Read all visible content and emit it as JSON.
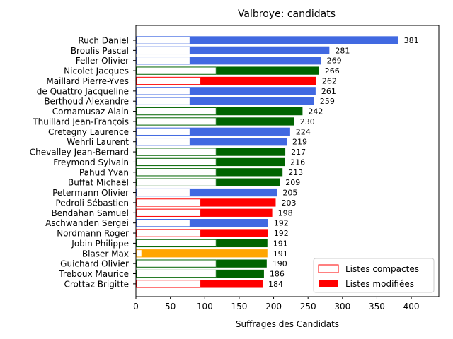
{
  "chart_data": {
    "type": "bar",
    "orientation": "horizontal",
    "title": "Valbroye: candidats",
    "xlabel": "Suffrages des Candidats",
    "ylabel": "",
    "xlim": [
      0,
      440
    ],
    "xticks": [
      "0",
      "50",
      "100",
      "150",
      "200",
      "250",
      "300",
      "350",
      "400"
    ],
    "grid": false,
    "legend_position": "bottom-right",
    "legend": [
      {
        "name": "Listes compactes",
        "style": "outline",
        "color": "#ff0000"
      },
      {
        "name": "Listes modifiées",
        "style": "filled",
        "color": "#ff0000"
      }
    ],
    "party_colors": {
      "blue": "#4169e1",
      "green": "#006400",
      "red": "#ff0000",
      "orange": "#ffa500"
    },
    "candidates": [
      {
        "name": "Ruch Daniel",
        "total": 381,
        "compact": 79,
        "party": "blue"
      },
      {
        "name": "Broulis Pascal",
        "total": 281,
        "compact": 79,
        "party": "blue"
      },
      {
        "name": "Feller Olivier",
        "total": 269,
        "compact": 79,
        "party": "blue"
      },
      {
        "name": "Nicolet Jacques",
        "total": 266,
        "compact": 117,
        "party": "green"
      },
      {
        "name": "Maillard Pierre-Yves",
        "total": 262,
        "compact": 94,
        "party": "red"
      },
      {
        "name": "de Quattro Jacqueline",
        "total": 261,
        "compact": 79,
        "party": "blue"
      },
      {
        "name": "Berthoud Alexandre",
        "total": 259,
        "compact": 79,
        "party": "blue"
      },
      {
        "name": "Cornamusaz Alain",
        "total": 242,
        "compact": 117,
        "party": "green"
      },
      {
        "name": "Thuillard Jean-François",
        "total": 230,
        "compact": 117,
        "party": "green"
      },
      {
        "name": "Cretegny Laurence",
        "total": 224,
        "compact": 79,
        "party": "blue"
      },
      {
        "name": "Wehrli Laurent",
        "total": 219,
        "compact": 79,
        "party": "blue"
      },
      {
        "name": "Chevalley Jean-Bernard",
        "total": 217,
        "compact": 117,
        "party": "green"
      },
      {
        "name": "Freymond Sylvain",
        "total": 216,
        "compact": 117,
        "party": "green"
      },
      {
        "name": "Pahud Yvan",
        "total": 213,
        "compact": 117,
        "party": "green"
      },
      {
        "name": "Buffat Michaël",
        "total": 209,
        "compact": 117,
        "party": "green"
      },
      {
        "name": "Petermann Olivier",
        "total": 205,
        "compact": 79,
        "party": "blue"
      },
      {
        "name": "Pedroli Sébastien",
        "total": 203,
        "compact": 94,
        "party": "red"
      },
      {
        "name": "Bendahan Samuel",
        "total": 198,
        "compact": 94,
        "party": "red"
      },
      {
        "name": "Aschwanden Sergei",
        "total": 192,
        "compact": 79,
        "party": "blue"
      },
      {
        "name": "Nordmann Roger",
        "total": 192,
        "compact": 94,
        "party": "red"
      },
      {
        "name": "Jobin Philippe",
        "total": 191,
        "compact": 117,
        "party": "green"
      },
      {
        "name": "Blaser Max",
        "total": 191,
        "compact": 9,
        "party": "orange"
      },
      {
        "name": "Guichard Olivier",
        "total": 190,
        "compact": 117,
        "party": "green"
      },
      {
        "name": "Treboux Maurice",
        "total": 186,
        "compact": 117,
        "party": "green"
      },
      {
        "name": "Crottaz Brigitte",
        "total": 184,
        "compact": 94,
        "party": "red"
      }
    ]
  }
}
